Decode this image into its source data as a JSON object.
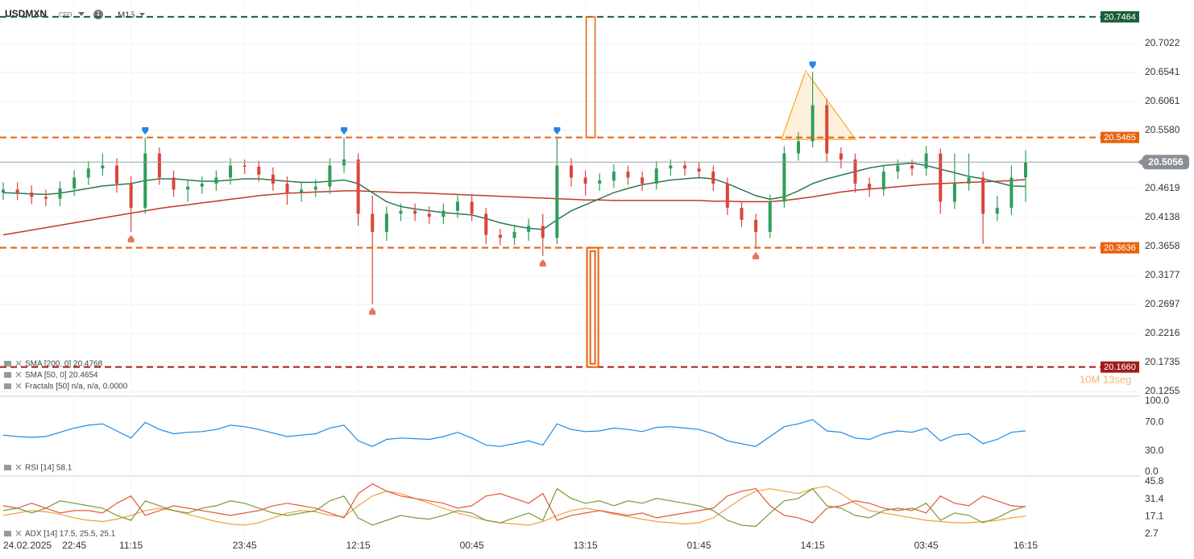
{
  "header": {
    "symbol": "USDMXN",
    "market": "CFD",
    "timeframe": "M15"
  },
  "chart_data": [
    {
      "type": "candlestick",
      "date_label": "24.02.2025",
      "countdown": "10M 13seg",
      "categories": [
        null,
        null,
        null,
        null,
        null,
        "22:45",
        null,
        null,
        null,
        "11:15",
        null,
        null,
        null,
        null,
        null,
        null,
        null,
        "23:45",
        null,
        null,
        null,
        null,
        null,
        null,
        null,
        "12:15",
        null,
        null,
        null,
        null,
        null,
        null,
        null,
        "00:45",
        null,
        null,
        null,
        null,
        null,
        null,
        null,
        "13:15",
        null,
        null,
        null,
        null,
        null,
        null,
        null,
        "01:45",
        null,
        null,
        null,
        null,
        null,
        null,
        null,
        "14:15",
        null,
        null,
        null,
        null,
        null,
        null,
        null,
        "03:45",
        null,
        null,
        null,
        null,
        null,
        null,
        "16:15"
      ],
      "open": [
        20.455,
        20.46,
        20.455,
        20.448,
        20.445,
        20.462,
        20.48,
        20.495,
        20.5,
        20.47,
        20.43,
        20.52,
        20.48,
        20.46,
        20.465,
        20.47,
        20.48,
        20.5,
        20.498,
        20.485,
        20.47,
        20.455,
        20.46,
        20.465,
        20.5,
        20.51,
        20.42,
        20.39,
        20.42,
        20.425,
        20.42,
        20.415,
        20.425,
        20.44,
        20.42,
        20.385,
        20.38,
        20.39,
        20.4,
        20.38,
        20.5,
        20.48,
        20.47,
        20.475,
        20.49,
        20.48,
        20.47,
        20.495,
        20.5,
        20.495,
        20.49,
        20.47,
        20.43,
        20.41,
        20.39,
        20.44,
        20.52,
        20.54,
        20.6,
        20.52,
        20.51,
        20.47,
        20.46,
        20.49,
        20.5,
        20.495,
        20.52,
        20.44,
        20.47,
        20.48,
        20.42,
        20.43,
        20.48
      ],
      "high": [
        20.472,
        20.472,
        20.467,
        20.46,
        20.474,
        20.492,
        20.507,
        20.52,
        20.512,
        20.482,
        20.546,
        20.53,
        20.492,
        20.477,
        20.482,
        20.492,
        20.512,
        20.51,
        20.508,
        20.497,
        20.482,
        20.472,
        20.477,
        20.512,
        20.546,
        20.52,
        20.45,
        20.432,
        20.437,
        20.437,
        20.432,
        20.437,
        20.452,
        20.45,
        20.43,
        20.395,
        20.402,
        20.412,
        20.42,
        20.546,
        20.512,
        20.492,
        20.487,
        20.502,
        20.5,
        20.49,
        20.507,
        20.51,
        20.508,
        20.505,
        20.5,
        20.48,
        20.44,
        20.42,
        20.452,
        20.532,
        20.555,
        20.655,
        20.61,
        20.53,
        20.52,
        20.48,
        20.5,
        20.51,
        20.51,
        20.532,
        20.528,
        20.52,
        20.52,
        20.49,
        20.45,
        20.5,
        20.525
      ],
      "low": [
        20.443,
        20.443,
        20.436,
        20.433,
        20.433,
        20.45,
        20.468,
        20.483,
        20.455,
        20.39,
        20.42,
        20.468,
        20.448,
        20.44,
        20.453,
        20.458,
        20.468,
        20.486,
        20.473,
        20.458,
        20.435,
        20.44,
        20.448,
        20.453,
        20.488,
        20.4,
        20.27,
        20.375,
        20.408,
        20.408,
        20.403,
        20.403,
        20.413,
        20.408,
        20.37,
        20.368,
        20.368,
        20.375,
        20.35,
        20.37,
        20.465,
        20.45,
        20.458,
        20.463,
        20.468,
        20.458,
        20.46,
        20.483,
        20.483,
        20.478,
        20.458,
        20.418,
        20.398,
        20.362,
        20.38,
        20.43,
        20.508,
        20.53,
        20.505,
        20.495,
        20.455,
        20.448,
        20.45,
        20.478,
        20.483,
        20.483,
        20.42,
        20.428,
        20.458,
        20.37,
        20.408,
        20.418,
        20.44
      ],
      "close": [
        20.46,
        20.455,
        20.448,
        20.445,
        20.462,
        20.48,
        20.495,
        20.5,
        20.47,
        20.43,
        20.52,
        20.48,
        20.46,
        20.465,
        20.47,
        20.48,
        20.5,
        20.498,
        20.485,
        20.47,
        20.455,
        20.46,
        20.465,
        20.5,
        20.51,
        20.42,
        20.39,
        20.42,
        20.425,
        20.42,
        20.415,
        20.425,
        20.44,
        20.42,
        20.385,
        20.38,
        20.39,
        20.4,
        20.38,
        20.5,
        20.48,
        20.47,
        20.475,
        20.49,
        20.48,
        20.47,
        20.495,
        20.5,
        20.495,
        20.49,
        20.47,
        20.43,
        20.41,
        20.39,
        20.44,
        20.52,
        20.54,
        20.6,
        20.52,
        20.51,
        20.47,
        20.46,
        20.49,
        20.5,
        20.495,
        20.52,
        20.44,
        20.47,
        20.48,
        20.42,
        20.43,
        20.48,
        20.505
      ],
      "up_color": "#2f9e5a",
      "down_color": "#d9453b",
      "ylim": [
        20.1175,
        20.7743
      ],
      "yticks": [
        20.7022,
        20.6541,
        20.6061,
        {
          "value": 20.558,
          "label": "20.5580"
        },
        20.4619,
        20.4138,
        20.3658,
        20.3177,
        20.2697,
        20.2216,
        20.1735,
        20.1255
      ],
      "grid": true,
      "series": [
        {
          "name": "SMA [200, 0] 20.4768",
          "color": "#c0392b",
          "values": [
            20.385,
            20.389,
            20.393,
            20.397,
            20.401,
            20.405,
            20.409,
            20.413,
            20.417,
            20.421,
            20.425,
            20.429,
            20.432,
            20.435,
            20.438,
            20.441,
            20.444,
            20.447,
            20.45,
            20.452,
            20.454,
            20.455,
            20.456,
            20.457,
            20.458,
            20.458,
            20.457,
            20.456,
            20.455,
            20.455,
            20.454,
            20.453,
            20.452,
            20.451,
            20.45,
            20.449,
            20.448,
            20.447,
            20.446,
            20.445,
            20.444,
            20.443,
            20.443,
            20.442,
            20.442,
            20.442,
            20.442,
            20.442,
            20.442,
            20.442,
            20.441,
            20.441,
            20.44,
            20.44,
            20.44,
            20.442,
            20.445,
            20.448,
            20.452,
            20.456,
            20.459,
            20.461,
            20.463,
            20.465,
            20.467,
            20.469,
            20.47,
            20.471,
            20.472,
            20.473,
            20.474,
            20.475,
            20.4768
          ]
        },
        {
          "name": "SMA [50, 0] 20.4654",
          "color": "#2d7a4f",
          "values": [
            20.455,
            20.454,
            20.453,
            20.452,
            20.454,
            20.458,
            20.462,
            20.466,
            20.468,
            20.47,
            20.475,
            20.478,
            20.478,
            20.476,
            20.474,
            20.474,
            20.476,
            20.478,
            20.478,
            20.476,
            20.474,
            20.472,
            20.472,
            20.474,
            20.476,
            20.47,
            20.455,
            20.44,
            20.432,
            20.428,
            20.425,
            20.422,
            20.42,
            20.418,
            20.412,
            20.405,
            20.4,
            20.396,
            20.394,
            20.41,
            20.425,
            20.435,
            20.445,
            20.455,
            20.462,
            20.468,
            20.472,
            20.476,
            20.478,
            20.48,
            20.478,
            20.47,
            20.46,
            20.45,
            20.444,
            20.448,
            20.458,
            20.47,
            20.478,
            20.484,
            20.49,
            20.496,
            20.5,
            20.502,
            20.504,
            20.5,
            20.494,
            20.488,
            20.482,
            20.478,
            20.472,
            20.466,
            20.4654
          ]
        }
      ],
      "fractals": {
        "name": "Fractals [50] n/a, n/a, 0.0000",
        "up": [
          10,
          24,
          39,
          57
        ],
        "down": [
          9,
          26,
          38,
          53
        ],
        "up_color": "#1e88e5",
        "down_color": "#e8735a"
      },
      "levels": [
        {
          "value": 20.7464,
          "color": "#1b5e3b"
        },
        {
          "value": 20.5465,
          "color": "#e8620f"
        },
        {
          "value": 20.3636,
          "color": "#e8620f"
        },
        {
          "value": 20.166,
          "label": "20.1660",
          "color": "#a01c1c"
        }
      ],
      "last_price": {
        "value": 20.5056,
        "color": "#8a8f96"
      }
    },
    {
      "type": "line",
      "title": "RSI [14] 58.1",
      "ylim": [
        0,
        100
      ],
      "yticks": [
        {
          "value": 100,
          "label": "100.0"
        },
        {
          "value": 70,
          "label": "70.0"
        },
        {
          "value": 30,
          "label": "30.0"
        },
        {
          "value": 0,
          "label": "0.0"
        }
      ],
      "series": [
        {
          "color": "#1e88e5",
          "values": [
            52,
            50,
            49,
            50,
            56,
            62,
            66,
            68,
            58,
            48,
            70,
            60,
            54,
            56,
            57,
            60,
            66,
            64,
            60,
            55,
            50,
            52,
            54,
            62,
            66,
            44,
            36,
            46,
            48,
            47,
            46,
            50,
            56,
            48,
            38,
            36,
            40,
            44,
            38,
            68,
            60,
            57,
            58,
            62,
            60,
            57,
            63,
            64,
            62,
            60,
            54,
            44,
            40,
            36,
            50,
            64,
            68,
            74,
            58,
            56,
            48,
            46,
            54,
            58,
            56,
            62,
            44,
            52,
            54,
            40,
            46,
            56,
            58.1
          ]
        }
      ]
    },
    {
      "type": "line",
      "title": "ADX [14] 17.5, 25.5, 25.1",
      "ylim": [
        2.7,
        45.8
      ],
      "yticks": [
        45.8,
        31.4,
        17.1,
        2.7
      ],
      "series": [
        {
          "color": "#f0a040",
          "values": [
            18,
            20,
            22,
            21,
            19,
            16,
            14,
            13,
            15,
            18,
            22,
            24,
            22,
            19,
            16,
            13,
            11,
            10,
            12,
            16,
            20,
            22,
            21,
            18,
            17,
            26,
            34,
            38,
            36,
            32,
            28,
            24,
            20,
            17,
            14,
            12,
            11,
            10,
            13,
            18,
            22,
            24,
            22,
            19,
            17,
            15,
            13,
            12,
            11,
            12,
            16,
            24,
            32,
            38,
            40,
            38,
            36,
            40,
            42,
            36,
            28,
            22,
            20,
            18,
            16,
            14,
            13,
            12,
            12,
            13,
            14,
            16,
            17.5
          ]
        },
        {
          "color": "#7a9a3a",
          "values": [
            22,
            24,
            20,
            24,
            30,
            28,
            26,
            24,
            18,
            14,
            30,
            26,
            22,
            20,
            24,
            26,
            30,
            28,
            24,
            20,
            18,
            20,
            22,
            30,
            34,
            16,
            10,
            14,
            18,
            16,
            15,
            18,
            22,
            20,
            14,
            12,
            16,
            20,
            14,
            40,
            32,
            28,
            30,
            26,
            30,
            28,
            32,
            30,
            28,
            26,
            22,
            14,
            10,
            9,
            20,
            30,
            32,
            40,
            26,
            24,
            18,
            16,
            22,
            24,
            22,
            28,
            14,
            20,
            18,
            12,
            16,
            22,
            25.5
          ]
        },
        {
          "color": "#e05a3a",
          "values": [
            26,
            24,
            28,
            24,
            20,
            22,
            22,
            20,
            28,
            34,
            18,
            22,
            26,
            24,
            22,
            20,
            18,
            20,
            22,
            26,
            28,
            26,
            24,
            20,
            16,
            36,
            44,
            38,
            34,
            32,
            30,
            28,
            24,
            26,
            34,
            36,
            32,
            28,
            36,
            14,
            18,
            20,
            22,
            20,
            18,
            20,
            16,
            18,
            20,
            22,
            24,
            34,
            38,
            40,
            26,
            18,
            16,
            12,
            24,
            26,
            30,
            28,
            24,
            22,
            24,
            20,
            34,
            28,
            26,
            34,
            30,
            26,
            25.1
          ]
        }
      ]
    }
  ]
}
